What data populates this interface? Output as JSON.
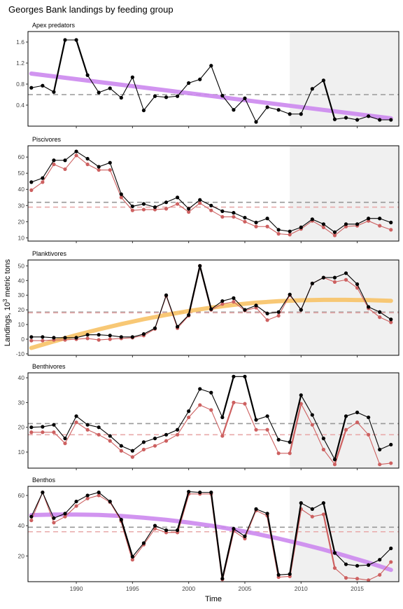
{
  "figure": {
    "title": "Georges Bank landings by feeding group",
    "xlabel": "Time",
    "ylabel_main": "Landings, 10",
    "ylabel_sup": "3",
    "ylabel_tail": " metric tons"
  },
  "style": {
    "total_color": "#000000",
    "managed_color": "#cd6060",
    "purple_trend": "#cc88ee",
    "orange_trend": "#f7c266",
    "mean_total_color": "#999999",
    "mean_managed_color": "#e8aaaa",
    "shade_color": "#f0f0f0"
  },
  "chart_data": [
    {
      "type": "line",
      "title": "Apex predators",
      "xlim": [
        1985.7,
        2018.7
      ],
      "ylim": [
        0.0,
        1.8
      ],
      "yticks": [
        0.4,
        0.8,
        1.2,
        1.6
      ],
      "yticklabels": [
        "0.4",
        "0.8",
        "1.2",
        "1.6"
      ],
      "xticks": [
        1990,
        1995,
        2000,
        2005,
        2010,
        2015
      ],
      "shade_from": 2009,
      "total_mean": 0.6,
      "managed_mean": null,
      "series": [
        {
          "role": "total",
          "x": [
            1986,
            1987,
            1988,
            1989,
            1990,
            1991,
            1992,
            1993,
            1994,
            1995,
            1996,
            1997,
            1998,
            1999,
            2000,
            2001,
            2002,
            2003,
            2004,
            2005,
            2006,
            2007,
            2008,
            2009,
            2010,
            2011,
            2012,
            2013,
            2014,
            2015,
            2016,
            2017,
            2018
          ],
          "values": [
            0.73,
            0.77,
            0.65,
            1.64,
            1.64,
            0.97,
            0.64,
            0.72,
            0.54,
            0.93,
            0.3,
            0.57,
            0.55,
            0.57,
            0.82,
            0.89,
            1.15,
            0.58,
            0.31,
            0.53,
            0.08,
            0.36,
            0.31,
            0.23,
            0.23,
            0.71,
            0.87,
            0.13,
            0.16,
            0.12,
            0.19,
            0.12,
            0.12
          ]
        }
      ],
      "trend": {
        "color": "purple",
        "x": [
          1986,
          2018
        ],
        "values": [
          1.0,
          0.15
        ]
      }
    },
    {
      "type": "line",
      "title": "Piscivores",
      "xlim": [
        1985.7,
        2018.7
      ],
      "ylim": [
        8,
        67
      ],
      "yticks": [
        10,
        20,
        30,
        40,
        50,
        60
      ],
      "yticklabels": [
        "10",
        "20",
        "30",
        "40",
        "50",
        "60"
      ],
      "xticks": [
        1990,
        1995,
        2000,
        2005,
        2010,
        2015
      ],
      "shade_from": 2009,
      "total_mean": 32,
      "managed_mean": 29,
      "series": [
        {
          "role": "total",
          "x": [
            1986,
            1987,
            1988,
            1989,
            1990,
            1991,
            1992,
            1993,
            1994,
            1995,
            1996,
            1997,
            1998,
            1999,
            2000,
            2001,
            2002,
            2003,
            2004,
            2005,
            2006,
            2007,
            2008,
            2009,
            2010,
            2011,
            2012,
            2013,
            2014,
            2015,
            2016,
            2017,
            2018
          ],
          "values": [
            44.5,
            47,
            58,
            58,
            63.5,
            59,
            54,
            56.5,
            37,
            29.5,
            31,
            29,
            32,
            35,
            28,
            33.5,
            30,
            26.5,
            25.5,
            22.5,
            19.5,
            22,
            15,
            14,
            16.5,
            21.5,
            18.5,
            13.5,
            18.5,
            18.5,
            22,
            22,
            19.5
          ]
        },
        {
          "role": "managed",
          "x": [
            1986,
            1987,
            1988,
            1989,
            1990,
            1991,
            1992,
            1993,
            1994,
            1995,
            1996,
            1997,
            1998,
            1999,
            2000,
            2001,
            2002,
            2003,
            2004,
            2005,
            2006,
            2007,
            2008,
            2009,
            2010,
            2011,
            2012,
            2013,
            2014,
            2015,
            2016,
            2017,
            2018
          ],
          "values": [
            39.5,
            44.5,
            55.5,
            52.5,
            61,
            55.5,
            52,
            52,
            35,
            27,
            27.5,
            27.5,
            28,
            31,
            26,
            31.5,
            27,
            23,
            23,
            20,
            17,
            17,
            12.5,
            12,
            15.5,
            20.5,
            16.5,
            11.5,
            17,
            17.5,
            20.5,
            17.5,
            15
          ]
        }
      ]
    },
    {
      "type": "line",
      "title": "Planktivores",
      "xlim": [
        1985.7,
        2018.7
      ],
      "ylim": [
        -11,
        54
      ],
      "yticks": [
        -10,
        0,
        10,
        20,
        30,
        40,
        50
      ],
      "yticklabels": [
        "-10",
        "0",
        "10",
        "20",
        "30",
        "40",
        "50"
      ],
      "xticks": [
        1990,
        1995,
        2000,
        2005,
        2010,
        2015
      ],
      "shade_from": 2009,
      "total_mean": 18.5,
      "managed_mean": 18,
      "series": [
        {
          "role": "total",
          "x": [
            1986,
            1987,
            1988,
            1989,
            1990,
            1991,
            1992,
            1993,
            1994,
            1995,
            1996,
            1997,
            1998,
            1999,
            2000,
            2001,
            2002,
            2003,
            2004,
            2005,
            2006,
            2007,
            2008,
            2009,
            2010,
            2011,
            2012,
            2013,
            2014,
            2015,
            2016,
            2017,
            2018
          ],
          "values": [
            1.5,
            1.5,
            1,
            1,
            1,
            3,
            3,
            2.5,
            1.5,
            1.5,
            3.5,
            7.5,
            30,
            8.5,
            16.5,
            50,
            20.5,
            26,
            28,
            20,
            23,
            17.5,
            18.5,
            30.5,
            20,
            38,
            42,
            42,
            45,
            37.5,
            22,
            18.5,
            13.5
          ]
        },
        {
          "role": "managed",
          "x": [
            1986,
            1987,
            1988,
            1989,
            1990,
            1991,
            1992,
            1993,
            1994,
            1995,
            1996,
            1997,
            1998,
            1999,
            2000,
            2001,
            2002,
            2003,
            2004,
            2005,
            2006,
            2007,
            2008,
            2009,
            2010,
            2011,
            2012,
            2013,
            2014,
            2015,
            2016,
            2017,
            2018
          ],
          "values": [
            -1,
            -1,
            -0.5,
            -0.5,
            0,
            0.5,
            -0.5,
            0,
            0.5,
            1,
            2.5,
            7,
            29.5,
            7.5,
            16,
            50,
            20,
            24,
            25.5,
            19.5,
            21.5,
            13,
            16,
            30,
            20,
            38,
            42,
            39,
            40.5,
            35,
            21,
            15,
            11.5
          ]
        }
      ],
      "trend": {
        "color": "orange",
        "x": [
          1986,
          1988,
          1990,
          1992,
          1994,
          1996,
          1998,
          2000,
          2002,
          2004,
          2006,
          2008,
          2010,
          2012,
          2014,
          2016,
          2018
        ],
        "values": [
          -6.0,
          -1.5,
          2.8,
          6.7,
          10.3,
          13.6,
          16.6,
          19.2,
          21.5,
          23.4,
          24.9,
          25.9,
          26.5,
          26.8,
          26.8,
          26.6,
          26.2
        ]
      }
    },
    {
      "type": "line",
      "title": "Benthivores",
      "xlim": [
        1985.7,
        2018.7
      ],
      "ylim": [
        3.5,
        42
      ],
      "yticks": [
        10,
        20,
        30,
        40
      ],
      "yticklabels": [
        "10",
        "20",
        "30",
        "40"
      ],
      "xticks": [
        1990,
        1995,
        2000,
        2005,
        2010,
        2015
      ],
      "shade_from": 2009,
      "total_mean": 21.5,
      "managed_mean": 17,
      "series": [
        {
          "role": "total",
          "x": [
            1986,
            1987,
            1988,
            1989,
            1990,
            1991,
            1992,
            1993,
            1994,
            1995,
            1996,
            1997,
            1998,
            1999,
            2000,
            2001,
            2002,
            2003,
            2004,
            2005,
            2006,
            2007,
            2008,
            2009,
            2010,
            2011,
            2012,
            2013,
            2014,
            2015,
            2016,
            2017,
            2018
          ],
          "values": [
            20,
            20.2,
            21,
            15.5,
            24.5,
            21,
            20,
            16.5,
            12.5,
            10.5,
            14,
            15.5,
            17,
            19,
            26.5,
            35.5,
            34,
            24,
            40.5,
            40.5,
            23,
            24.5,
            15,
            14,
            33,
            25,
            15.5,
            7,
            24.5,
            26,
            24,
            11,
            13
          ]
        },
        {
          "role": "managed",
          "x": [
            1986,
            1987,
            1988,
            1989,
            1990,
            1991,
            1992,
            1993,
            1994,
            1995,
            1996,
            1997,
            1998,
            1999,
            2000,
            2001,
            2002,
            2003,
            2004,
            2005,
            2006,
            2007,
            2008,
            2009,
            2010,
            2011,
            2012,
            2013,
            2014,
            2015,
            2016,
            2017,
            2018
          ],
          "values": [
            18,
            18,
            18,
            13.5,
            22,
            19,
            17,
            14.5,
            10.5,
            8,
            11,
            12.5,
            14.5,
            17,
            24,
            29,
            27,
            16.5,
            30,
            29.5,
            19,
            19,
            9.5,
            9.5,
            29.5,
            21,
            11,
            5,
            19,
            22,
            17,
            5,
            5.5
          ]
        }
      ]
    },
    {
      "type": "line",
      "title": "Benthos",
      "xlim": [
        1985.7,
        2018.7
      ],
      "ylim": [
        3,
        66
      ],
      "yticks": [
        20,
        40,
        60
      ],
      "yticklabels": [
        "20",
        "40",
        "60"
      ],
      "xticks": [
        1990,
        1995,
        2000,
        2005,
        2010,
        2015
      ],
      "xticklabels": [
        "1990",
        "1995",
        "2000",
        "2005",
        "2010",
        "2015"
      ],
      "shade_from": 2009,
      "total_mean": 39,
      "managed_mean": 36,
      "series": [
        {
          "role": "total",
          "x": [
            1986,
            1987,
            1988,
            1989,
            1990,
            1991,
            1992,
            1993,
            1994,
            1995,
            1996,
            1997,
            1998,
            1999,
            2000,
            2001,
            2002,
            2003,
            2004,
            2005,
            2006,
            2007,
            2008,
            2009,
            2010,
            2011,
            2012,
            2013,
            2014,
            2015,
            2016,
            2017,
            2018
          ],
          "values": [
            46,
            62,
            45,
            48,
            56,
            60,
            62,
            56,
            44,
            19.5,
            28.5,
            40,
            37,
            37,
            62.5,
            62,
            62,
            5,
            38,
            33,
            51,
            48,
            7.5,
            8,
            55,
            51,
            55,
            22,
            14.5,
            13.5,
            14,
            17.5,
            25
          ]
        },
        {
          "role": "managed",
          "x": [
            1986,
            1987,
            1988,
            1989,
            1990,
            1991,
            1992,
            1993,
            1994,
            1995,
            1996,
            1997,
            1998,
            1999,
            2000,
            2001,
            2002,
            2003,
            2004,
            2005,
            2006,
            2007,
            2008,
            2009,
            2010,
            2011,
            2012,
            2013,
            2014,
            2015,
            2016,
            2017,
            2018
          ],
          "values": [
            43.5,
            62,
            42,
            46,
            53,
            58,
            60,
            55.5,
            43,
            17.5,
            27.5,
            38,
            35.5,
            35.5,
            61,
            61,
            61,
            4.5,
            36.5,
            31.5,
            50,
            46.5,
            6,
            6.5,
            51,
            46,
            47.5,
            12,
            5.5,
            5,
            4,
            7.5,
            16
          ]
        }
      ],
      "trend": {
        "color": "purple",
        "x": [
          1986,
          1988,
          1990,
          1992,
          1994,
          1996,
          1998,
          2000,
          2002,
          2004,
          2006,
          2008,
          2010,
          2012,
          2014,
          2016,
          2018
        ],
        "values": [
          47.0,
          47.4,
          47.4,
          47.1,
          46.4,
          45.3,
          43.9,
          42.1,
          40.0,
          37.5,
          34.7,
          31.5,
          28.0,
          24.2,
          20.0,
          15.6,
          10.8
        ]
      }
    }
  ]
}
